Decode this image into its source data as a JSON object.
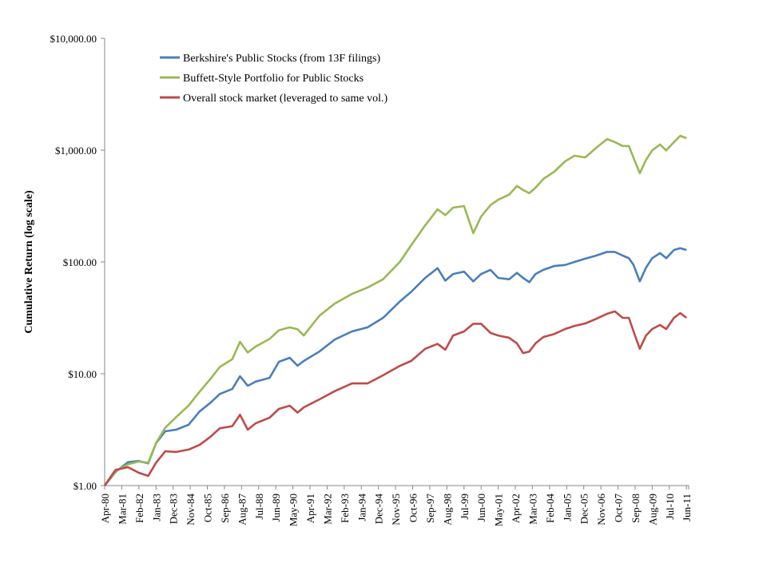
{
  "chart_data": {
    "type": "line",
    "title": "",
    "xlabel": "",
    "ylabel": "Cumulative Return  (log scale)",
    "y_scale": "log",
    "ylim": [
      1,
      10000
    ],
    "y_ticks": [
      1,
      10,
      100,
      1000,
      10000
    ],
    "y_tick_labels": [
      "$1.00",
      "$10.00",
      "$100.00",
      "$1,000.00",
      "$10,000.00"
    ],
    "x_tick_labels": [
      "Apr-80",
      "Mar-81",
      "Feb-82",
      "Jan-83",
      "Dec-83",
      "Nov-84",
      "Oct-85",
      "Sep-86",
      "Aug-87",
      "Jul-88",
      "Jun-89",
      "May-90",
      "Apr-91",
      "Mar-92",
      "Feb-93",
      "Jan-94",
      "Dec-94",
      "Nov-95",
      "Oct-96",
      "Sep-97",
      "Aug-98",
      "Jul-99",
      "Jun-00",
      "May-01",
      "Apr-02",
      "Mar-03",
      "Feb-04",
      "Jan-05",
      "Dec-05",
      "Nov-06",
      "Oct-07",
      "Sep-08",
      "Aug-09",
      "Jul-10",
      "Jun-11"
    ],
    "xlim": [
      "1980-04",
      "2011-06"
    ],
    "grid": false,
    "legend_placement": "top-left",
    "x": [
      "1980-04",
      "1980-11",
      "1981-07",
      "1982-02",
      "1982-08",
      "1983-01",
      "1983-07",
      "1984-02",
      "1984-10",
      "1985-05",
      "1985-12",
      "1986-06",
      "1987-02",
      "1987-07",
      "1987-12",
      "1988-05",
      "1989-02",
      "1989-08",
      "1990-03",
      "1990-08",
      "1990-12",
      "1991-10",
      "1992-08",
      "1993-07",
      "1994-05",
      "1995-03",
      "1996-02",
      "1996-09",
      "1997-06",
      "1998-02",
      "1998-07",
      "1998-12",
      "1999-07",
      "2000-01",
      "2000-06",
      "2000-12",
      "2001-05",
      "2001-12",
      "2002-05",
      "2002-09",
      "2003-01",
      "2003-05",
      "2003-10",
      "2004-05",
      "2004-12",
      "2005-06",
      "2006-01",
      "2006-08",
      "2007-03",
      "2007-08",
      "2008-01",
      "2008-05",
      "2008-08",
      "2008-12",
      "2009-04",
      "2009-08",
      "2010-01",
      "2010-05",
      "2010-10",
      "2011-02",
      "2011-06"
    ],
    "series": [
      {
        "name": "Berkshire's Public Stocks (from 13F filings)",
        "color": "#4a7ebb",
        "values": [
          1,
          1.32,
          1.62,
          1.66,
          1.58,
          2.39,
          3.06,
          3.16,
          3.5,
          4.6,
          5.5,
          6.6,
          7.3,
          9.5,
          7.8,
          8.5,
          9.2,
          12.8,
          13.9,
          11.8,
          13,
          15.8,
          20.3,
          23.9,
          26,
          31.6,
          44.6,
          54,
          72,
          88,
          68,
          78,
          82,
          67,
          78,
          85,
          72,
          70,
          80,
          72,
          66,
          78,
          85,
          92,
          94,
          100,
          107,
          114,
          123,
          123,
          114,
          108,
          94,
          67,
          89,
          108,
          120,
          108,
          128,
          133,
          128
        ]
      },
      {
        "name": "Buffett-Style Portfolio for Public Stocks",
        "color": "#98b954",
        "values": [
          1,
          1.34,
          1.55,
          1.64,
          1.6,
          2.4,
          3.3,
          4.1,
          5.2,
          6.9,
          9.0,
          11.5,
          13.5,
          19.3,
          15.5,
          17.5,
          20.5,
          24.5,
          26,
          25,
          22,
          33,
          42.5,
          51.8,
          59,
          70,
          101,
          141,
          212,
          296,
          262,
          306,
          316,
          181,
          255,
          322,
          360,
          400,
          478,
          440,
          412,
          462,
          552,
          641,
          794,
          891,
          861,
          1050,
          1256,
          1180,
          1090,
          1090,
          853,
          622,
          818,
          995,
          1123,
          995,
          1180,
          1345,
          1280
        ]
      },
      {
        "name": "Overall stock market (leveraged to same vol.)",
        "color": "#be4b48",
        "values": [
          1,
          1.38,
          1.46,
          1.3,
          1.22,
          1.6,
          2.03,
          2.0,
          2.1,
          2.31,
          2.73,
          3.25,
          3.4,
          4.3,
          3.16,
          3.6,
          4.05,
          4.85,
          5.18,
          4.5,
          5.0,
          5.9,
          7.0,
          8.2,
          8.2,
          9.7,
          11.8,
          13,
          16.7,
          18.5,
          16.4,
          22,
          23.9,
          28,
          28,
          23.2,
          22,
          21,
          18.7,
          15.3,
          15.8,
          18.7,
          21.3,
          22.7,
          25.1,
          26.8,
          28.2,
          31,
          34.4,
          36.1,
          31.6,
          31.6,
          23.9,
          16.7,
          22,
          25.1,
          27.3,
          25.1,
          31.6,
          34.9,
          31.6
        ]
      }
    ]
  }
}
